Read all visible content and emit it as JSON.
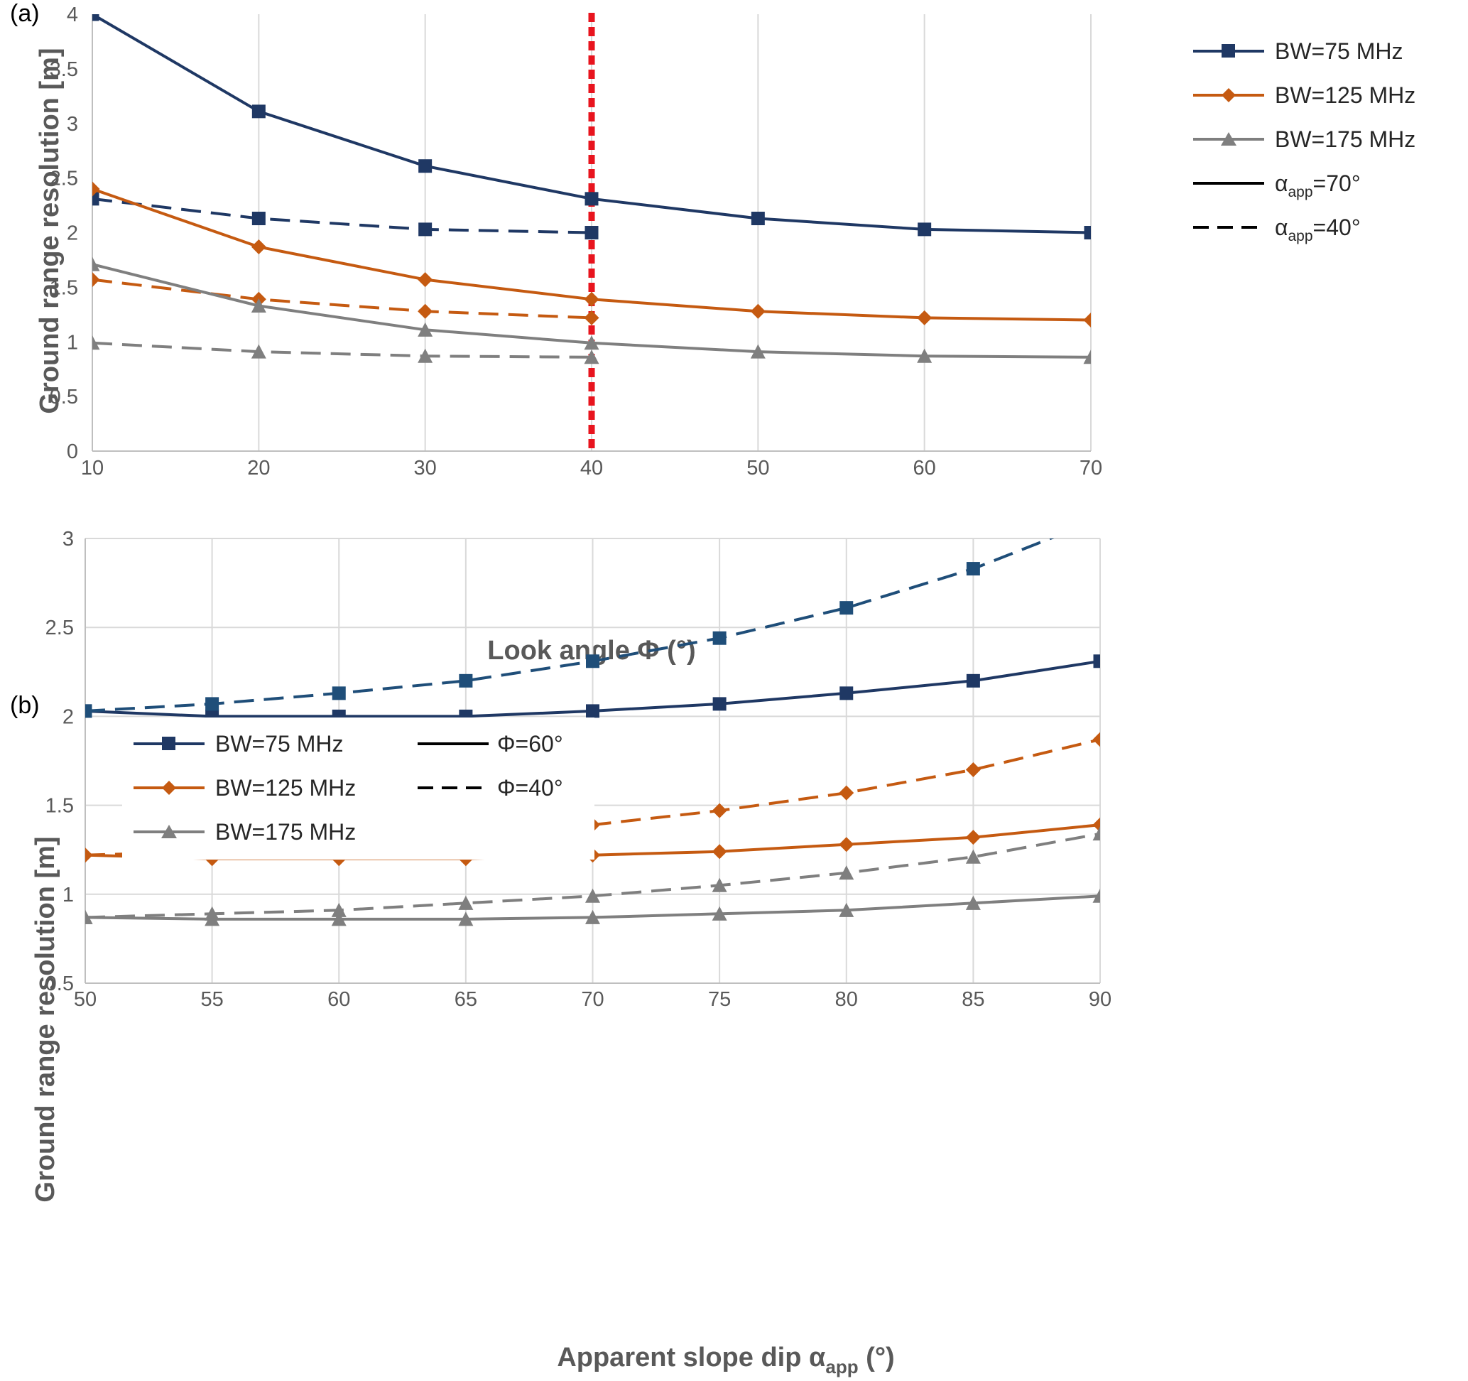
{
  "chart_data": [
    {
      "panel_label": "(a)",
      "type": "line",
      "xlabel": "Look angle Φ (°)",
      "ylabel": "Ground range resolution [m]",
      "xlim": [
        10,
        70
      ],
      "ylim": [
        0,
        4
      ],
      "x_ticks": [
        10,
        20,
        30,
        40,
        50,
        60,
        70
      ],
      "y_ticks": [
        0,
        0.5,
        1,
        1.5,
        2,
        2.5,
        3,
        3.5,
        4
      ],
      "x_tick_labels": [
        "10",
        "20",
        "30",
        "40",
        "50",
        "60",
        "70"
      ],
      "y_tick_labels": [
        "0",
        "0.5",
        "1",
        "1.5",
        "2",
        "2.5",
        "3",
        "3.5",
        "4"
      ],
      "grid": "vertical",
      "vertical_reference_line": {
        "x": 40,
        "color": "#e8141e",
        "style": "dotted"
      },
      "legend_position": "top-right",
      "legend": [
        {
          "label": "BW=75 MHz",
          "color": "#1f3864",
          "marker": "square",
          "line": "solid"
        },
        {
          "label": "BW=125 MHz",
          "color": "#c55a11",
          "marker": "diamond",
          "line": "solid"
        },
        {
          "label": "BW=175 MHz",
          "color": "#7f7f7f",
          "marker": "triangle",
          "line": "solid"
        },
        {
          "label_main": "α",
          "label_sub": "app",
          "label_tail": "=70°",
          "color": "#000000",
          "line": "solid"
        },
        {
          "label_main": "α",
          "label_sub": "app",
          "label_tail": "=40°",
          "color": "#000000",
          "line": "dashed"
        }
      ],
      "series": [
        {
          "color": "#1f3864",
          "marker": "square",
          "line": "solid",
          "x": [
            10,
            20,
            30,
            40,
            50,
            60,
            70
          ],
          "values": [
            4.0,
            3.11,
            2.61,
            2.31,
            2.13,
            2.03,
            2.0
          ]
        },
        {
          "color": "#1f3864",
          "marker": "square",
          "line": "dashed",
          "x": [
            10,
            20,
            30,
            40
          ],
          "values": [
            2.31,
            2.13,
            2.03,
            2.0
          ]
        },
        {
          "color": "#c55a11",
          "marker": "diamond",
          "line": "solid",
          "x": [
            10,
            20,
            30,
            40,
            50,
            60,
            70
          ],
          "values": [
            2.4,
            1.87,
            1.57,
            1.39,
            1.28,
            1.22,
            1.2
          ]
        },
        {
          "color": "#c55a11",
          "marker": "diamond",
          "line": "dashed",
          "x": [
            10,
            20,
            30,
            40
          ],
          "values": [
            1.57,
            1.39,
            1.28,
            1.22
          ]
        },
        {
          "color": "#7f7f7f",
          "marker": "triangle",
          "line": "solid",
          "x": [
            10,
            20,
            30,
            40,
            50,
            60,
            70
          ],
          "values": [
            1.71,
            1.33,
            1.11,
            0.99,
            0.91,
            0.87,
            0.86
          ]
        },
        {
          "color": "#7f7f7f",
          "marker": "triangle",
          "line": "dashed",
          "x": [
            10,
            20,
            30,
            40
          ],
          "values": [
            0.99,
            0.91,
            0.87,
            0.86
          ]
        }
      ]
    },
    {
      "panel_label": "(b)",
      "type": "line",
      "xlabel_main": "Apparent slope dip α",
      "xlabel_sub": "app",
      "xlabel_tail": " (°)",
      "ylabel": "Ground range resolution [m]",
      "xlim": [
        50,
        90
      ],
      "ylim": [
        0.5,
        3
      ],
      "x_ticks": [
        50,
        55,
        60,
        65,
        70,
        75,
        80,
        85,
        90
      ],
      "y_ticks": [
        0.5,
        1,
        1.5,
        2,
        2.5,
        3
      ],
      "x_tick_labels": [
        "50",
        "55",
        "60",
        "65",
        "70",
        "75",
        "80",
        "85",
        "90"
      ],
      "y_tick_labels": [
        "0.5",
        "1",
        "1.5",
        "2",
        "2.5",
        "3"
      ],
      "grid": "both",
      "legend_position": "top-left",
      "legend": [
        {
          "label": "BW=75 MHz",
          "color": "#1f3864",
          "marker": "square",
          "line": "solid"
        },
        {
          "label": "BW=125 MHz",
          "color": "#c55a11",
          "marker": "diamond",
          "line": "solid"
        },
        {
          "label": "BW=175 MHz",
          "color": "#7f7f7f",
          "marker": "triangle",
          "line": "solid"
        },
        {
          "label": "Φ=60°",
          "color": "#000000",
          "line": "solid"
        },
        {
          "label": "Φ=40°",
          "color": "#000000",
          "line": "dashed"
        }
      ],
      "series": [
        {
          "color": "#1f3864",
          "marker": "square",
          "line": "solid",
          "x": [
            50,
            55,
            60,
            65,
            70,
            75,
            80,
            85,
            90
          ],
          "values": [
            2.03,
            2.0,
            2.0,
            2.0,
            2.03,
            2.07,
            2.13,
            2.2,
            2.31
          ]
        },
        {
          "color": "#1f4e79",
          "marker": "square",
          "line": "dashed",
          "x": [
            50,
            55,
            60,
            65,
            70,
            75,
            80,
            85,
            90
          ],
          "values": [
            2.03,
            2.07,
            2.13,
            2.2,
            2.31,
            2.44,
            2.61,
            2.83,
            3.11
          ]
        },
        {
          "color": "#c55a11",
          "marker": "diamond",
          "line": "solid",
          "x": [
            50,
            55,
            60,
            65,
            70,
            75,
            80,
            85,
            90
          ],
          "values": [
            1.22,
            1.2,
            1.2,
            1.2,
            1.22,
            1.24,
            1.28,
            1.32,
            1.39
          ]
        },
        {
          "color": "#c55a11",
          "marker": "diamond",
          "line": "dashed",
          "x": [
            50,
            55,
            60,
            65,
            70,
            75,
            80,
            85,
            90
          ],
          "values": [
            1.22,
            1.24,
            1.28,
            1.32,
            1.39,
            1.47,
            1.57,
            1.7,
            1.87
          ]
        },
        {
          "color": "#7f7f7f",
          "marker": "triangle",
          "line": "solid",
          "x": [
            50,
            55,
            60,
            65,
            70,
            75,
            80,
            85,
            90
          ],
          "values": [
            0.87,
            0.86,
            0.86,
            0.86,
            0.87,
            0.89,
            0.91,
            0.95,
            0.99
          ]
        },
        {
          "color": "#7f7f7f",
          "marker": "triangle",
          "line": "dashed",
          "x": [
            50,
            55,
            60,
            65,
            70,
            75,
            80,
            85,
            90
          ],
          "values": [
            0.87,
            0.89,
            0.91,
            0.95,
            0.99,
            1.05,
            1.12,
            1.21,
            1.34
          ]
        }
      ]
    }
  ]
}
